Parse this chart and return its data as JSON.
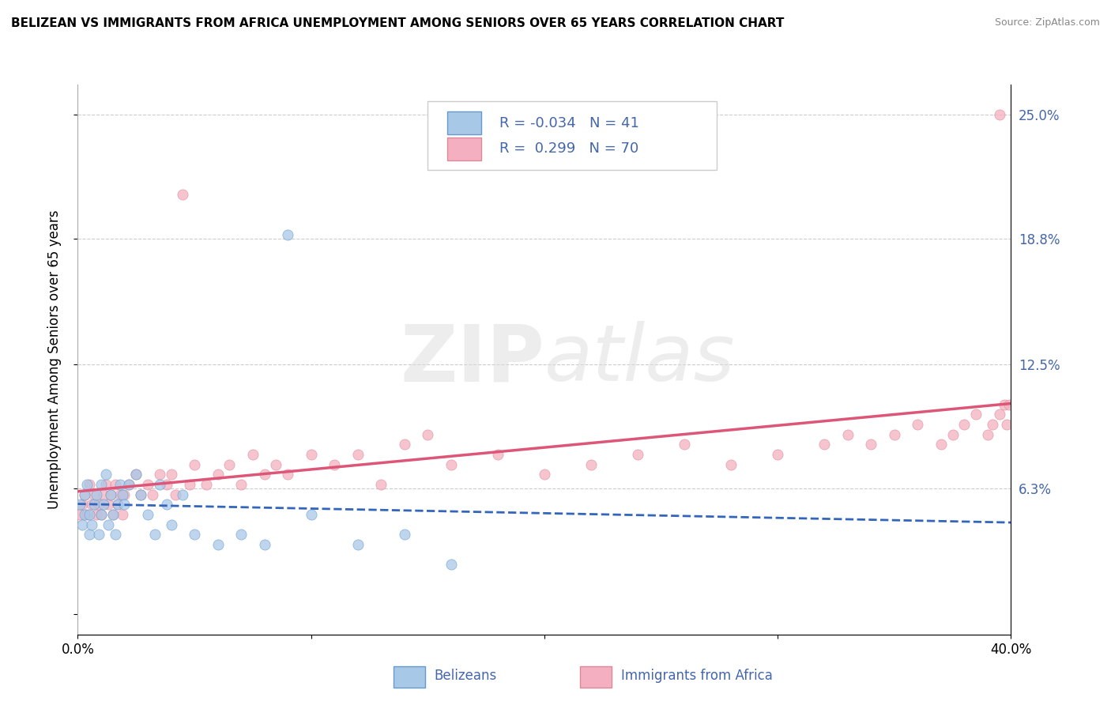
{
  "title": "BELIZEAN VS IMMIGRANTS FROM AFRICA UNEMPLOYMENT AMONG SENIORS OVER 65 YEARS CORRELATION CHART",
  "source": "Source: ZipAtlas.com",
  "ylabel": "Unemployment Among Seniors over 65 years",
  "xlim": [
    0.0,
    0.4
  ],
  "ylim": [
    -0.01,
    0.265
  ],
  "watermark_top": "ZIP",
  "watermark_bottom": "atlas",
  "legend_R1": "-0.034",
  "legend_N1": "41",
  "legend_R2": "0.299",
  "legend_N2": "70",
  "belizean_color": "#a8c8e8",
  "africa_color": "#f4b0c0",
  "belizean_edge_color": "#6699cc",
  "africa_edge_color": "#dd8899",
  "belizean_line_color": "#3366bb",
  "africa_line_color": "#dd5577",
  "grid_color": "#cccccc",
  "label_color": "#4466aa",
  "belizean_x": [
    0.001,
    0.002,
    0.003,
    0.003,
    0.004,
    0.005,
    0.005,
    0.006,
    0.007,
    0.008,
    0.009,
    0.01,
    0.01,
    0.011,
    0.012,
    0.013,
    0.014,
    0.015,
    0.016,
    0.017,
    0.018,
    0.019,
    0.02,
    0.022,
    0.025,
    0.027,
    0.03,
    0.033,
    0.035,
    0.038,
    0.04,
    0.045,
    0.05,
    0.06,
    0.07,
    0.08,
    0.09,
    0.1,
    0.12,
    0.14,
    0.16
  ],
  "belizean_y": [
    0.055,
    0.045,
    0.06,
    0.05,
    0.065,
    0.04,
    0.05,
    0.045,
    0.055,
    0.06,
    0.04,
    0.05,
    0.065,
    0.055,
    0.07,
    0.045,
    0.06,
    0.05,
    0.04,
    0.055,
    0.065,
    0.06,
    0.055,
    0.065,
    0.07,
    0.06,
    0.05,
    0.04,
    0.065,
    0.055,
    0.045,
    0.06,
    0.04,
    0.035,
    0.04,
    0.035,
    0.19,
    0.05,
    0.035,
    0.04,
    0.025
  ],
  "africa_x": [
    0.001,
    0.002,
    0.003,
    0.004,
    0.005,
    0.006,
    0.007,
    0.008,
    0.009,
    0.01,
    0.011,
    0.012,
    0.013,
    0.014,
    0.015,
    0.016,
    0.017,
    0.018,
    0.019,
    0.02,
    0.022,
    0.025,
    0.027,
    0.03,
    0.032,
    0.035,
    0.038,
    0.04,
    0.042,
    0.045,
    0.048,
    0.05,
    0.055,
    0.06,
    0.065,
    0.07,
    0.075,
    0.08,
    0.085,
    0.09,
    0.1,
    0.11,
    0.12,
    0.13,
    0.14,
    0.15,
    0.16,
    0.18,
    0.2,
    0.22,
    0.24,
    0.26,
    0.28,
    0.3,
    0.32,
    0.33,
    0.34,
    0.35,
    0.36,
    0.37,
    0.375,
    0.38,
    0.385,
    0.39,
    0.392,
    0.395,
    0.397,
    0.398,
    0.399,
    0.395
  ],
  "africa_y": [
    0.05,
    0.055,
    0.06,
    0.05,
    0.065,
    0.055,
    0.06,
    0.05,
    0.055,
    0.05,
    0.06,
    0.065,
    0.055,
    0.06,
    0.05,
    0.065,
    0.055,
    0.06,
    0.05,
    0.06,
    0.065,
    0.07,
    0.06,
    0.065,
    0.06,
    0.07,
    0.065,
    0.07,
    0.06,
    0.21,
    0.065,
    0.075,
    0.065,
    0.07,
    0.075,
    0.065,
    0.08,
    0.07,
    0.075,
    0.07,
    0.08,
    0.075,
    0.08,
    0.065,
    0.085,
    0.09,
    0.075,
    0.08,
    0.07,
    0.075,
    0.08,
    0.085,
    0.075,
    0.08,
    0.085,
    0.09,
    0.085,
    0.09,
    0.095,
    0.085,
    0.09,
    0.095,
    0.1,
    0.09,
    0.095,
    0.1,
    0.105,
    0.095,
    0.105,
    0.25
  ]
}
